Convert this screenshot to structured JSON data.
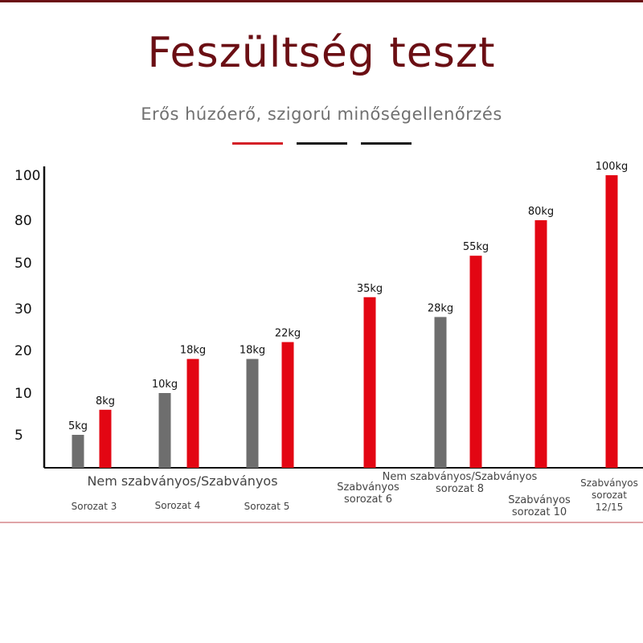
{
  "title": "Feszültség teszt",
  "subtitle": "Erős húzóerő, szigorú minőségellenőrzés",
  "colors": {
    "title": "#6b0f14",
    "standard": "#e30613",
    "non_standard": "#6e6e6e",
    "accent_line": "#d42027",
    "dark_line": "#1a1a1a"
  },
  "chart_data": {
    "type": "bar",
    "title": "",
    "xlabel": "",
    "ylabel": "",
    "y_ticks": [
      "100",
      "80",
      "50",
      "30",
      "20",
      "10",
      "5"
    ],
    "legend_text": "Nem szabványos/Szabványos",
    "series": [
      {
        "name": "Nem szabványos",
        "values": [
          5,
          10,
          18,
          null,
          28,
          null,
          null
        ]
      },
      {
        "name": "Szabványos",
        "values": [
          8,
          18,
          22,
          35,
          55,
          80,
          100
        ]
      }
    ],
    "value_labels": {
      "non_standard": [
        "5kg",
        "10kg",
        "18kg",
        null,
        "28kg",
        null,
        null
      ],
      "standard": [
        "8kg",
        "18kg",
        "22kg",
        "35kg",
        "55kg",
        "80kg",
        "100kg"
      ]
    },
    "categories": [
      {
        "lines": [
          "Sorozat 3"
        ]
      },
      {
        "lines": [
          "Sorozat 4"
        ]
      },
      {
        "lines": [
          "Sorozat 5"
        ]
      },
      {
        "lines": [
          "Szabványos",
          "sorozat 6"
        ]
      },
      {
        "lines": [
          "Nem szabványos/Szabványos",
          "sorozat 8"
        ]
      },
      {
        "lines": [
          "Szabványos",
          "sorozat 10"
        ]
      },
      {
        "lines": [
          "Szabványos",
          "sorozat",
          "12/15"
        ]
      }
    ]
  }
}
